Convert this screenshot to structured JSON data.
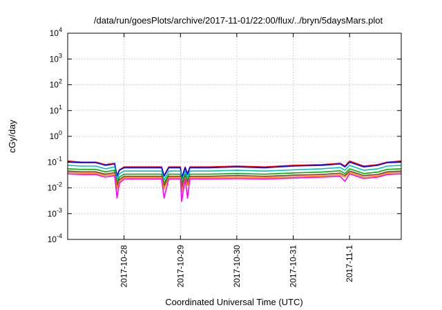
{
  "chart_data": {
    "type": "line",
    "title": "/data/run/goesPlots/archive/2017-11-01/22:00/flux/../bryn/5daysMars.plot",
    "xlabel": "Coordinated Universal Time (UTC)",
    "ylabel": "cGy/day",
    "yscale": "log",
    "ylim": [
      0.0001,
      10000
    ],
    "xlim": [
      "2017-10-27 00:00",
      "2017-11-01 22:00"
    ],
    "grid": true,
    "legend": "none",
    "x_ticks": [
      "2017-10-28",
      "2017-10-29",
      "2017-10-30",
      "2017-10-31",
      "2017-11-1"
    ],
    "y_ticks": [
      {
        "base": "10",
        "exp": "-4"
      },
      {
        "base": "10",
        "exp": "-3"
      },
      {
        "base": "10",
        "exp": "-2"
      },
      {
        "base": "10",
        "exp": "-1"
      },
      {
        "base": "10",
        "exp": "0"
      },
      {
        "base": "10",
        "exp": "1"
      },
      {
        "base": "10",
        "exp": "2"
      },
      {
        "base": "10",
        "exp": "3"
      },
      {
        "base": "10",
        "exp": "4"
      }
    ],
    "series": [
      {
        "color": "#ff0000",
        "x": [
          "2017-10-27 00:00",
          "2017-10-27 06:00",
          "2017-10-27 12:00",
          "2017-10-27 16:00",
          "2017-10-27 20:00",
          "2017-10-27 21:00",
          "2017-10-27 22:00",
          "2017-10-28 00:00",
          "2017-10-28 12:00",
          "2017-10-28 16:00",
          "2017-10-28 17:00",
          "2017-10-28 19:00",
          "2017-10-29 00:00",
          "2017-10-29 00:30",
          "2017-10-29 02:00",
          "2017-10-29 03:00",
          "2017-10-29 04:00",
          "2017-10-29 06:00",
          "2017-10-29 12:00",
          "2017-10-30 00:00",
          "2017-10-30 12:00",
          "2017-10-31 00:00",
          "2017-10-31 12:00",
          "2017-10-31 20:00",
          "2017-10-31 22:00",
          "2017-11-01 00:00",
          "2017-11-01 06:00",
          "2017-11-01 12:00",
          "2017-11-01 16:00",
          "2017-11-01 22:00"
        ],
        "values": [
          0.11,
          0.1,
          0.1,
          0.08,
          0.09,
          0.03,
          0.05,
          0.065,
          0.065,
          0.065,
          0.03,
          0.065,
          0.065,
          0.025,
          0.065,
          0.035,
          0.065,
          0.065,
          0.065,
          0.07,
          0.065,
          0.075,
          0.08,
          0.09,
          0.07,
          0.11,
          0.07,
          0.08,
          0.1,
          0.11
        ]
      },
      {
        "color": "#0000ff",
        "x": [
          "2017-10-27 00:00",
          "2017-10-27 06:00",
          "2017-10-27 12:00",
          "2017-10-27 16:00",
          "2017-10-27 20:00",
          "2017-10-27 21:00",
          "2017-10-27 22:00",
          "2017-10-28 00:00",
          "2017-10-28 12:00",
          "2017-10-28 16:00",
          "2017-10-28 17:00",
          "2017-10-28 19:00",
          "2017-10-29 00:00",
          "2017-10-29 00:30",
          "2017-10-29 02:00",
          "2017-10-29 03:00",
          "2017-10-29 04:00",
          "2017-10-29 06:00",
          "2017-10-29 12:00",
          "2017-10-30 00:00",
          "2017-10-30 12:00",
          "2017-10-31 00:00",
          "2017-10-31 12:00",
          "2017-10-31 20:00",
          "2017-10-31 22:00",
          "2017-11-01 00:00",
          "2017-11-01 06:00",
          "2017-11-01 12:00",
          "2017-11-01 16:00",
          "2017-11-01 22:00"
        ],
        "values": [
          0.1,
          0.095,
          0.095,
          0.075,
          0.085,
          0.028,
          0.048,
          0.06,
          0.06,
          0.06,
          0.028,
          0.06,
          0.06,
          0.023,
          0.06,
          0.033,
          0.06,
          0.06,
          0.06,
          0.065,
          0.06,
          0.07,
          0.075,
          0.085,
          0.065,
          0.1,
          0.065,
          0.075,
          0.095,
          0.1
        ]
      },
      {
        "color": "#00c0c0",
        "x": [
          "2017-10-27 00:00",
          "2017-10-27 06:00",
          "2017-10-27 12:00",
          "2017-10-27 16:00",
          "2017-10-27 20:00",
          "2017-10-27 21:00",
          "2017-10-27 22:00",
          "2017-10-28 00:00",
          "2017-10-28 12:00",
          "2017-10-28 16:00",
          "2017-10-28 17:00",
          "2017-10-28 19:00",
          "2017-10-29 00:00",
          "2017-10-29 00:30",
          "2017-10-29 02:00",
          "2017-10-29 03:00",
          "2017-10-29 04:00",
          "2017-10-29 06:00",
          "2017-10-29 12:00",
          "2017-10-30 00:00",
          "2017-10-30 12:00",
          "2017-10-31 00:00",
          "2017-10-31 12:00",
          "2017-10-31 20:00",
          "2017-10-31 22:00",
          "2017-11-01 00:00",
          "2017-11-01 06:00",
          "2017-11-01 12:00",
          "2017-11-01 16:00",
          "2017-11-01 22:00"
        ],
        "values": [
          0.075,
          0.07,
          0.07,
          0.055,
          0.065,
          0.02,
          0.035,
          0.045,
          0.045,
          0.045,
          0.02,
          0.045,
          0.045,
          0.017,
          0.045,
          0.025,
          0.045,
          0.045,
          0.045,
          0.048,
          0.045,
          0.05,
          0.055,
          0.062,
          0.048,
          0.075,
          0.048,
          0.055,
          0.07,
          0.075
        ]
      },
      {
        "color": "#00b000",
        "x": [
          "2017-10-27 00:00",
          "2017-10-27 06:00",
          "2017-10-27 12:00",
          "2017-10-27 16:00",
          "2017-10-27 20:00",
          "2017-10-27 21:00",
          "2017-10-27 22:00",
          "2017-10-28 00:00",
          "2017-10-28 12:00",
          "2017-10-28 16:00",
          "2017-10-28 17:00",
          "2017-10-28 19:00",
          "2017-10-29 00:00",
          "2017-10-29 00:30",
          "2017-10-29 02:00",
          "2017-10-29 03:00",
          "2017-10-29 04:00",
          "2017-10-29 06:00",
          "2017-10-29 12:00",
          "2017-10-30 00:00",
          "2017-10-30 12:00",
          "2017-10-31 00:00",
          "2017-10-31 12:00",
          "2017-10-31 20:00",
          "2017-10-31 22:00",
          "2017-11-01 00:00",
          "2017-11-01 06:00",
          "2017-11-01 12:00",
          "2017-11-01 16:00",
          "2017-11-01 22:00"
        ],
        "values": [
          0.055,
          0.052,
          0.052,
          0.042,
          0.048,
          0.015,
          0.026,
          0.034,
          0.034,
          0.034,
          0.015,
          0.034,
          0.034,
          0.013,
          0.034,
          0.019,
          0.034,
          0.034,
          0.034,
          0.036,
          0.034,
          0.038,
          0.041,
          0.046,
          0.036,
          0.055,
          0.036,
          0.041,
          0.052,
          0.055
        ]
      },
      {
        "color": "#7a3b2e",
        "x": [
          "2017-10-27 00:00",
          "2017-10-27 06:00",
          "2017-10-27 12:00",
          "2017-10-27 16:00",
          "2017-10-27 20:00",
          "2017-10-27 21:00",
          "2017-10-27 22:00",
          "2017-10-28 00:00",
          "2017-10-28 12:00",
          "2017-10-28 16:00",
          "2017-10-28 17:00",
          "2017-10-28 19:00",
          "2017-10-29 00:00",
          "2017-10-29 00:30",
          "2017-10-29 02:00",
          "2017-10-29 03:00",
          "2017-10-29 04:00",
          "2017-10-29 06:00",
          "2017-10-29 12:00",
          "2017-10-30 00:00",
          "2017-10-30 12:00",
          "2017-10-31 00:00",
          "2017-10-31 12:00",
          "2017-10-31 20:00",
          "2017-10-31 22:00",
          "2017-11-01 00:00",
          "2017-11-01 06:00",
          "2017-11-01 12:00",
          "2017-11-01 16:00",
          "2017-11-01 22:00"
        ],
        "values": [
          0.045,
          0.042,
          0.042,
          0.034,
          0.039,
          0.012,
          0.021,
          0.028,
          0.028,
          0.028,
          0.012,
          0.028,
          0.028,
          0.01,
          0.028,
          0.015,
          0.028,
          0.028,
          0.028,
          0.03,
          0.028,
          0.031,
          0.033,
          0.037,
          0.03,
          0.045,
          0.03,
          0.033,
          0.042,
          0.045
        ]
      },
      {
        "color": "#ff8c00",
        "x": [
          "2017-10-27 00:00",
          "2017-10-27 06:00",
          "2017-10-27 12:00",
          "2017-10-27 16:00",
          "2017-10-27 20:00",
          "2017-10-27 21:00",
          "2017-10-27 22:00",
          "2017-10-28 00:00",
          "2017-10-28 12:00",
          "2017-10-28 16:00",
          "2017-10-28 17:00",
          "2017-10-28 19:00",
          "2017-10-29 00:00",
          "2017-10-29 00:30",
          "2017-10-29 02:00",
          "2017-10-29 03:00",
          "2017-10-29 04:00",
          "2017-10-29 06:00",
          "2017-10-29 12:00",
          "2017-10-30 00:00",
          "2017-10-30 12:00",
          "2017-10-31 00:00",
          "2017-10-31 12:00",
          "2017-10-31 20:00",
          "2017-10-31 22:00",
          "2017-11-01 00:00",
          "2017-11-01 06:00",
          "2017-11-01 12:00",
          "2017-11-01 16:00",
          "2017-11-01 22:00"
        ],
        "values": [
          0.04,
          0.037,
          0.037,
          0.03,
          0.034,
          0.009,
          0.018,
          0.025,
          0.025,
          0.025,
          0.009,
          0.025,
          0.025,
          0.007,
          0.025,
          0.012,
          0.025,
          0.025,
          0.025,
          0.026,
          0.025,
          0.027,
          0.029,
          0.032,
          0.026,
          0.04,
          0.026,
          0.029,
          0.037,
          0.04
        ]
      },
      {
        "color": "#ff00ff",
        "x": [
          "2017-10-27 00:00",
          "2017-10-27 06:00",
          "2017-10-27 12:00",
          "2017-10-27 16:00",
          "2017-10-27 20:00",
          "2017-10-27 21:00",
          "2017-10-27 22:00",
          "2017-10-28 00:00",
          "2017-10-28 12:00",
          "2017-10-28 16:00",
          "2017-10-28 17:00",
          "2017-10-28 19:00",
          "2017-10-29 00:00",
          "2017-10-29 00:30",
          "2017-10-29 02:00",
          "2017-10-29 03:00",
          "2017-10-29 04:00",
          "2017-10-29 06:00",
          "2017-10-29 12:00",
          "2017-10-30 00:00",
          "2017-10-30 12:00",
          "2017-10-31 00:00",
          "2017-10-31 12:00",
          "2017-10-31 20:00",
          "2017-10-31 22:00",
          "2017-11-01 00:00",
          "2017-11-01 06:00",
          "2017-11-01 12:00",
          "2017-11-01 16:00",
          "2017-11-01 22:00"
        ],
        "values": [
          0.035,
          0.033,
          0.033,
          0.026,
          0.03,
          0.004,
          0.015,
          0.022,
          0.022,
          0.022,
          0.004,
          0.022,
          0.022,
          0.003,
          0.022,
          0.004,
          0.022,
          0.022,
          0.022,
          0.023,
          0.022,
          0.024,
          0.026,
          0.028,
          0.018,
          0.035,
          0.023,
          0.026,
          0.033,
          0.035
        ]
      }
    ]
  }
}
